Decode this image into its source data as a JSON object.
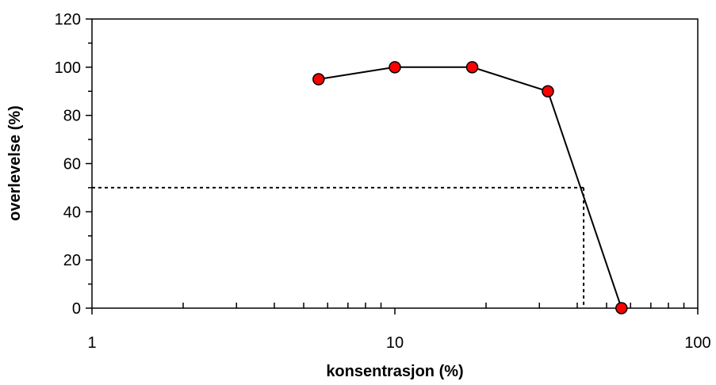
{
  "chart_data": {
    "type": "line",
    "title": "",
    "xlabel": "konsentrasjon (%)",
    "ylabel": "overlevelse (%)",
    "x_scale": "log",
    "xlim": [
      1,
      100
    ],
    "ylim": [
      0,
      120
    ],
    "x_ticks": [
      1,
      10,
      100
    ],
    "x_tick_labels": [
      "1",
      "10",
      "100"
    ],
    "y_ticks": [
      0,
      20,
      40,
      60,
      80,
      100,
      120
    ],
    "y_tick_labels": [
      "0",
      "20",
      "40",
      "60",
      "80",
      "100",
      "120"
    ],
    "grid": false,
    "legend": "none",
    "series": [
      {
        "x": [
          5.6,
          10,
          18,
          32,
          56
        ],
        "y": [
          95,
          100,
          100,
          90,
          0
        ],
        "line_color": "#000000",
        "marker": "circle",
        "marker_color": "#ff0000"
      }
    ],
    "reference_lines": [
      {
        "style": "dotted",
        "color": "#000000",
        "x": 42,
        "y": 50
      }
    ]
  }
}
